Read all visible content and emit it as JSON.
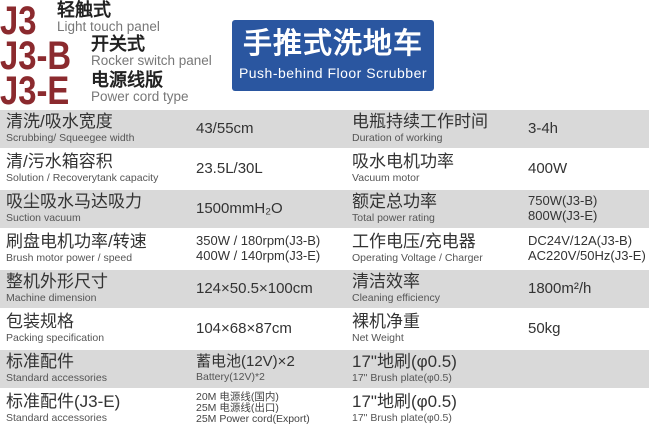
{
  "models": [
    {
      "code": "J3",
      "cn": "轻触式",
      "en": "Light touch panel"
    },
    {
      "code": "J3-B",
      "cn": "开关式",
      "en": "Rocker switch panel"
    },
    {
      "code": "J3-E",
      "cn": "电源线版",
      "en": "Power cord type"
    }
  ],
  "banner": {
    "cn": "手推式洗地车",
    "en": "Push-behind Floor Scrubber",
    "color": "#2a56a0"
  },
  "brand_color": "#8b2a2e",
  "rows": [
    {
      "l_cn": "清洗/吸水宽度",
      "l_en": "Scrubbing/ Squeegee width",
      "l_val": "43/55cm",
      "r_cn": "电瓶持续工作时间",
      "r_en": "Duration of working",
      "r_val": "3-4h"
    },
    {
      "l_cn": "清/污水箱容积",
      "l_en": "Solution / Recoverytank capacity",
      "l_val": "23.5L/30L",
      "r_cn": "吸水电机功率",
      "r_en": "Vacuum motor",
      "r_val": "400W"
    },
    {
      "l_cn": "吸尘吸水马达吸力",
      "l_en": "Suction vacuum",
      "l_val": "1500mmH₂O",
      "r_cn": "额定总功率",
      "r_en": "Total power rating",
      "r_val": [
        "750W(J3-B)",
        "800W(J3-E)"
      ]
    },
    {
      "l_cn": "刷盘电机功率/转速",
      "l_en": "Brush motor power / speed",
      "l_val": [
        "350W / 180rpm(J3-B)",
        "400W / 140rpm(J3-E)"
      ],
      "r_cn": "工作电压/充电器",
      "r_en": "Operating Voltage / Charger",
      "r_val": [
        "DC24V/12A(J3-B)",
        "AC220V/50Hz(J3-E)"
      ]
    },
    {
      "l_cn": "整机外形尺寸",
      "l_en": "Machine dimension",
      "l_val": "124×50.5×100cm",
      "r_cn": "清洁效率",
      "r_en": "Cleaning efficiency",
      "r_val": "1800m²/h"
    },
    {
      "l_cn": "包装规格",
      "l_en": "Packing specification",
      "l_val": "104×68×87cm",
      "r_cn": "裸机净重",
      "r_en": "Net Weight",
      "r_val": "50kg"
    },
    {
      "l_cn": "标准配件",
      "l_en": "Standard accessories",
      "l_val": [
        "蓄电池(12V)×2",
        "Battery(12V)*2"
      ],
      "r_cn": "17\"地刷(φ0.5)",
      "r_en": "17\" Brush plate(φ0.5)"
    },
    {
      "l_cn": "标准配件(J3-E)",
      "l_en": "Standard accessories",
      "l_val": [
        "20M 电源线(国内)",
        "25M 电源线(出口)",
        "25M Power cord(Export)"
      ],
      "r_cn": "17\"地刷(φ0.5)",
      "r_en": "17\" Brush plate(φ0.5)"
    }
  ]
}
